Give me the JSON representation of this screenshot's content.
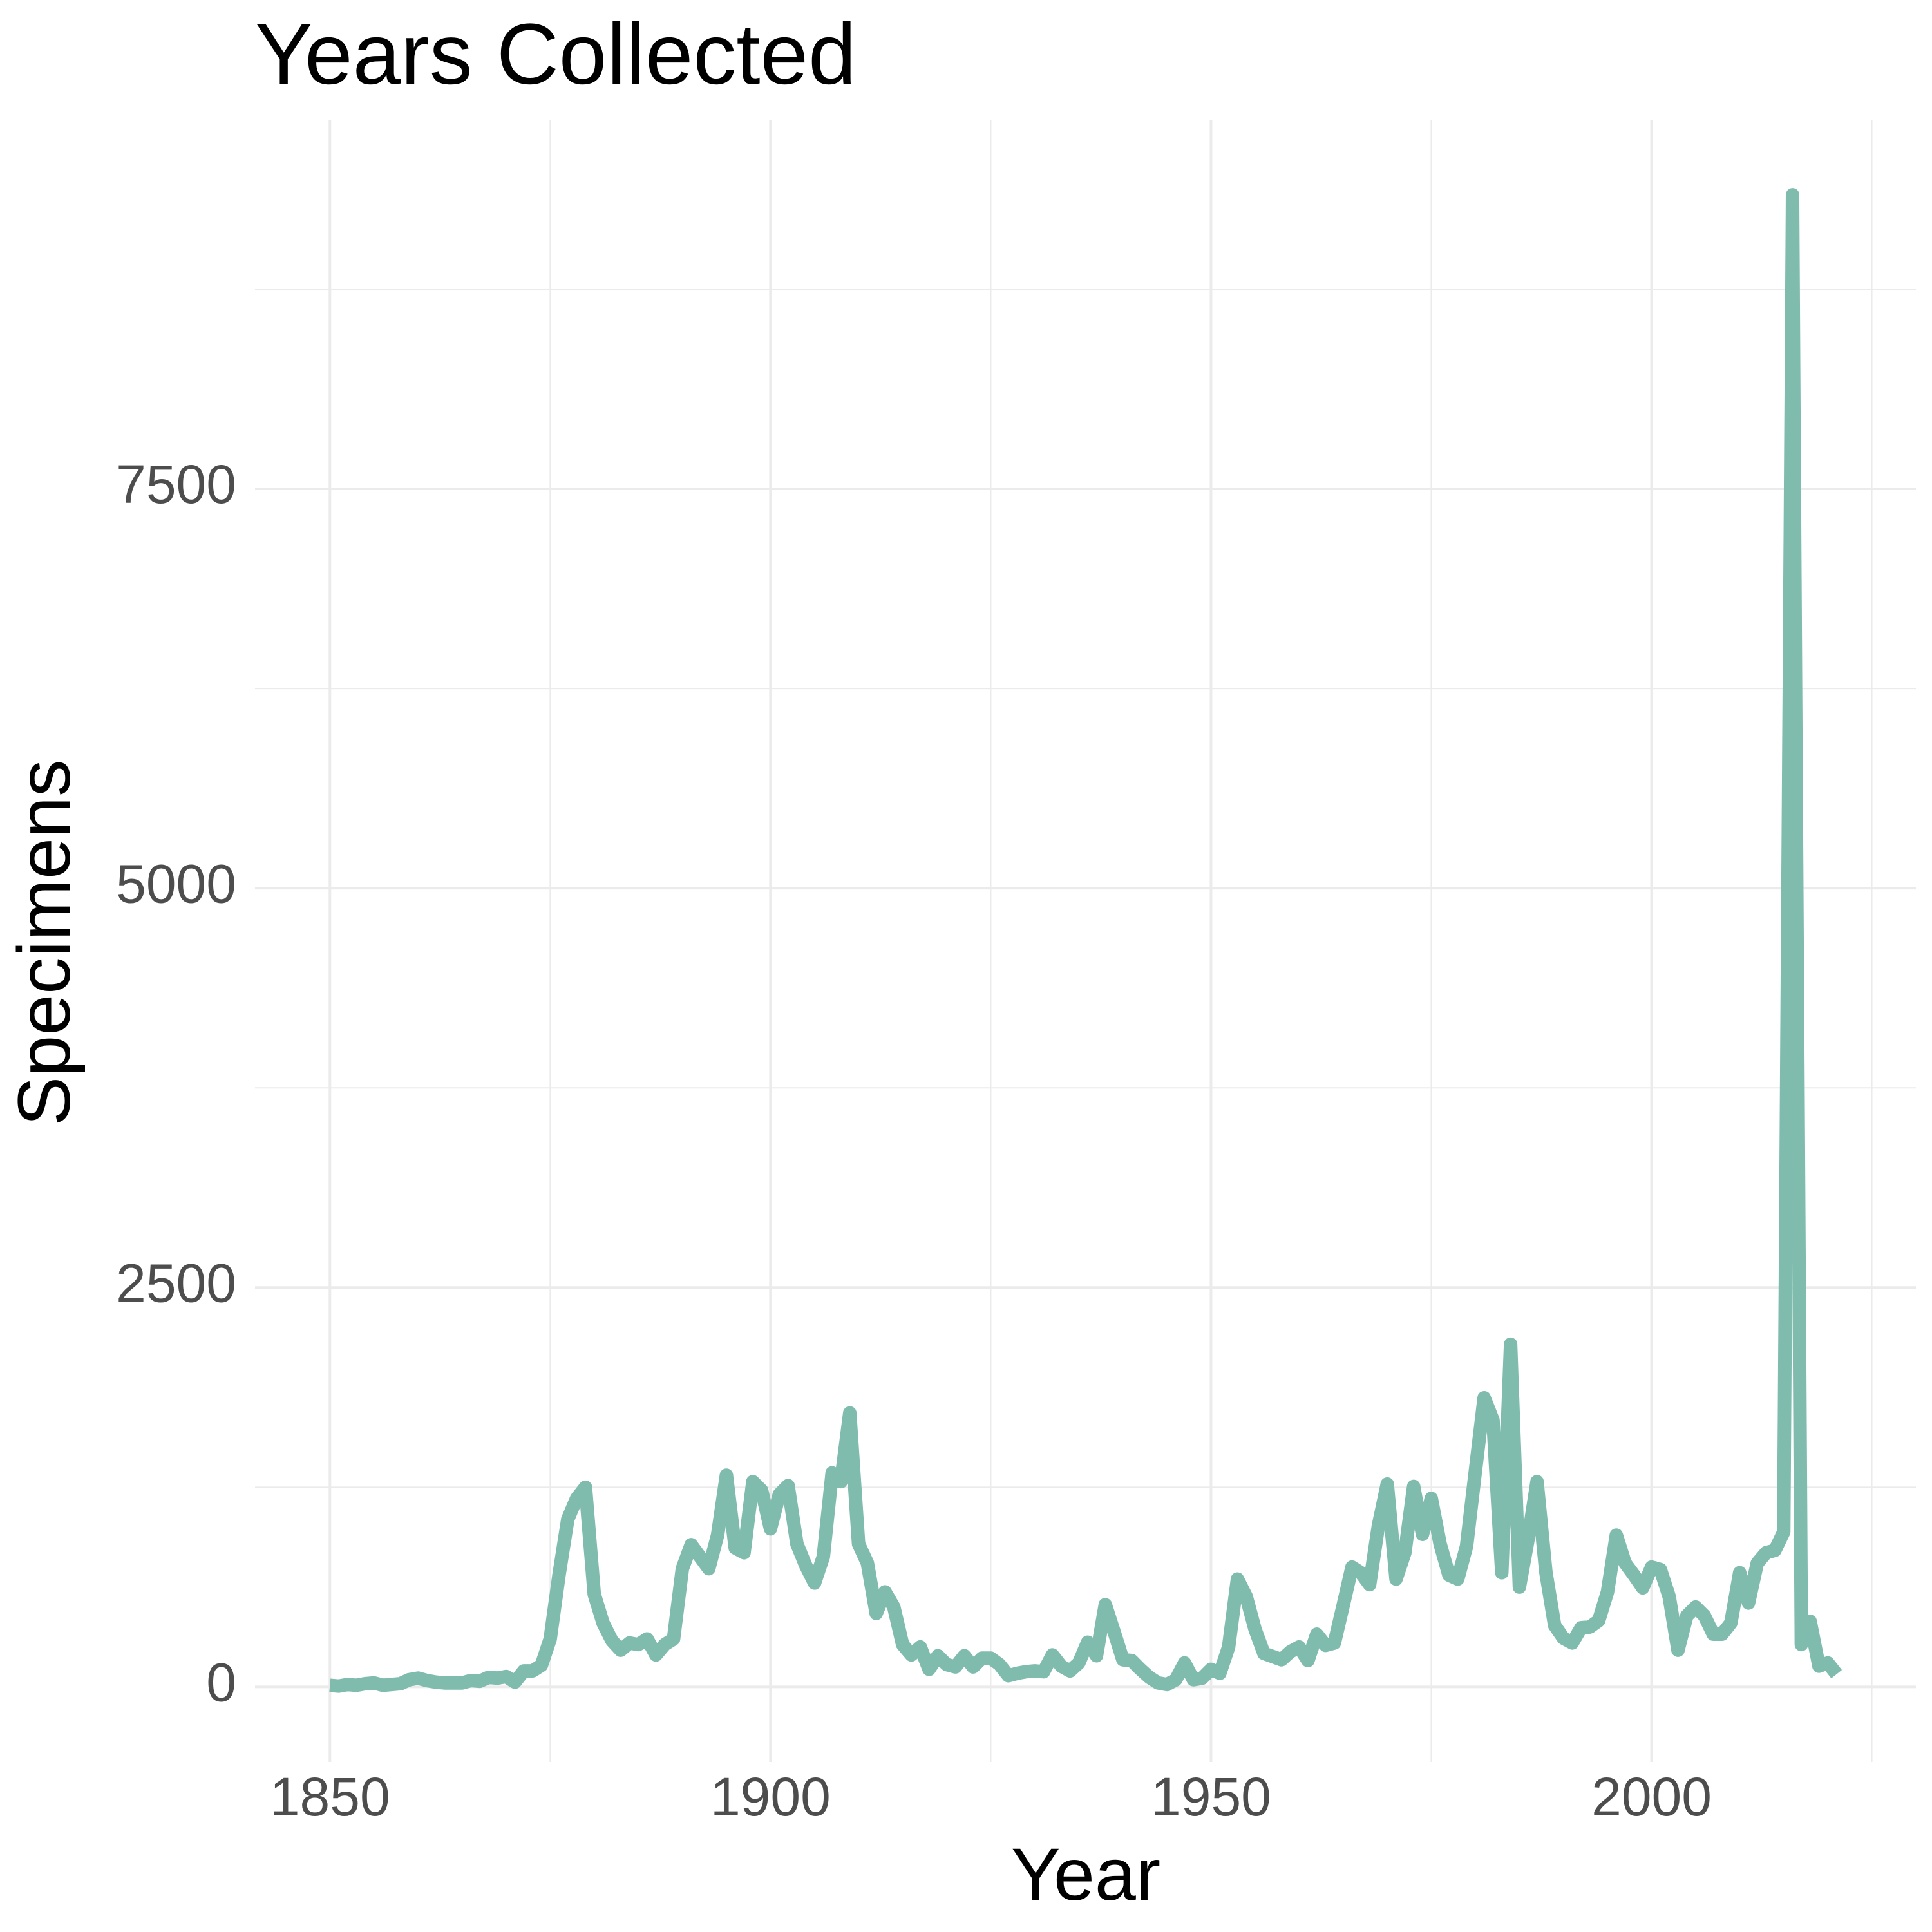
{
  "chart_data": {
    "type": "line",
    "title": "Years Collected",
    "x_label": "Year",
    "y_label": "Specimens",
    "x": [
      1850,
      1851,
      1852,
      1853,
      1854,
      1855,
      1856,
      1857,
      1858,
      1859,
      1860,
      1861,
      1862,
      1863,
      1864,
      1865,
      1866,
      1867,
      1868,
      1869,
      1870,
      1871,
      1872,
      1873,
      1874,
      1875,
      1876,
      1877,
      1878,
      1879,
      1880,
      1881,
      1882,
      1883,
      1884,
      1885,
      1886,
      1887,
      1888,
      1889,
      1890,
      1891,
      1892,
      1893,
      1894,
      1895,
      1896,
      1897,
      1898,
      1899,
      1900,
      1901,
      1902,
      1903,
      1904,
      1905,
      1906,
      1907,
      1908,
      1909,
      1910,
      1911,
      1912,
      1913,
      1914,
      1915,
      1916,
      1917,
      1918,
      1919,
      1920,
      1921,
      1922,
      1923,
      1924,
      1925,
      1926,
      1927,
      1928,
      1929,
      1930,
      1931,
      1932,
      1933,
      1934,
      1935,
      1936,
      1937,
      1938,
      1939,
      1940,
      1941,
      1942,
      1943,
      1944,
      1945,
      1946,
      1947,
      1948,
      1949,
      1950,
      1951,
      1952,
      1953,
      1954,
      1955,
      1956,
      1957,
      1958,
      1959,
      1960,
      1961,
      1962,
      1963,
      1964,
      1965,
      1966,
      1967,
      1968,
      1969,
      1970,
      1971,
      1972,
      1973,
      1974,
      1975,
      1976,
      1977,
      1978,
      1979,
      1980,
      1981,
      1982,
      1983,
      1984,
      1985,
      1986,
      1987,
      1988,
      1989,
      1990,
      1991,
      1992,
      1993,
      1994,
      1995,
      1996,
      1997,
      1998,
      1999,
      2000,
      2001,
      2002,
      2003,
      2004,
      2005,
      2006,
      2007,
      2008,
      2009,
      2010,
      2011,
      2012,
      2013,
      2014,
      2015,
      2016,
      2017,
      2018,
      2019,
      2020,
      2021
    ],
    "values": [
      10,
      5,
      15,
      10,
      20,
      25,
      10,
      15,
      20,
      45,
      55,
      40,
      30,
      25,
      25,
      25,
      40,
      35,
      60,
      55,
      65,
      30,
      100,
      100,
      135,
      300,
      700,
      1050,
      1180,
      1250,
      580,
      400,
      290,
      230,
      275,
      265,
      300,
      200,
      265,
      300,
      740,
      890,
      815,
      740,
      950,
      1325,
      870,
      840,
      1285,
      1230,
      990,
      1205,
      1260,
      895,
      760,
      650,
      815,
      1340,
      1285,
      1715,
      895,
      775,
      460,
      595,
      500,
      265,
      200,
      250,
      110,
      195,
      140,
      125,
      195,
      125,
      180,
      180,
      140,
      70,
      85,
      95,
      100,
      95,
      200,
      130,
      100,
      150,
      280,
      195,
      515,
      345,
      170,
      165,
      110,
      60,
      25,
      15,
      45,
      150,
      45,
      55,
      110,
      85,
      250,
      675,
      565,
      360,
      210,
      190,
      170,
      220,
      250,
      165,
      330,
      260,
      275,
      510,
      750,
      715,
      640,
      1010,
      1270,
      675,
      840,
      1255,
      955,
      1180,
      895,
      700,
      675,
      880,
      1350,
      1810,
      1670,
      715,
      2145,
      625,
      930,
      1285,
      720,
      385,
      305,
      275,
      370,
      375,
      415,
      595,
      950,
      775,
      700,
      620,
      750,
      735,
      565,
      230,
      445,
      500,
      445,
      330,
      330,
      400,
      715,
      525,
      775,
      840,
      855,
      970,
      9340,
      265,
      410,
      130,
      150,
      80
    ],
    "color": "#7fbcad",
    "xlim": [
      1841.5,
      2030
    ],
    "ylim": [
      -470,
      9810
    ],
    "xticks": [
      1850,
      1900,
      1950,
      2000
    ],
    "yticks": [
      0,
      2500,
      5000,
      7500
    ],
    "xminorticks": [
      1875,
      1925,
      1975,
      2025
    ],
    "yminorticks": [
      1250,
      3750,
      6250,
      8750
    ],
    "grid": true
  }
}
